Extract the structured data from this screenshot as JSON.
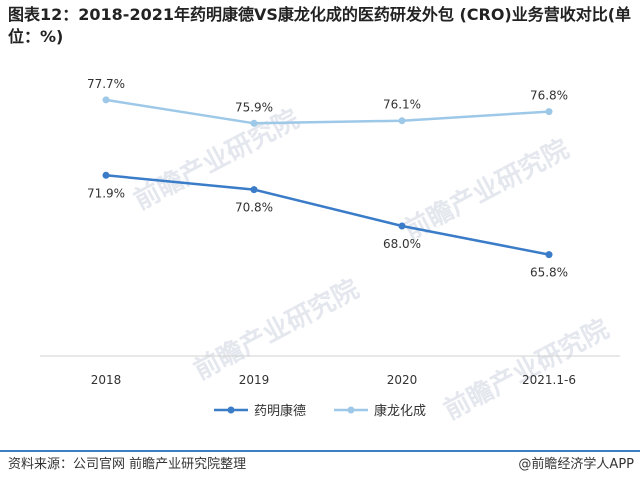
{
  "title": "图表12：2018-2021年药明康德VS康龙化成的医药研发外包 (CRO)业务营收对比(单位：%)",
  "footer": {
    "source": "资料来源：公司官网 前瞻产业研究院整理",
    "brand": "@前瞻经济学人APP"
  },
  "watermark": "前瞻产业研究院",
  "colors": {
    "wuxi": "#3a7cc8",
    "kanglong": "#9dc8e8",
    "footer_rule": "#3d7fc4"
  },
  "chart_data": {
    "type": "line",
    "categories": [
      "2018",
      "2019",
      "2020",
      "2021.1-6"
    ],
    "ylim": [
      60,
      80
    ],
    "grid": false,
    "legend_position": "bottom",
    "series": [
      {
        "name": "药明康德",
        "values": [
          71.9,
          70.8,
          68.0,
          65.8
        ],
        "labels": [
          "71.9%",
          "70.8%",
          "68.0%",
          "65.8%"
        ],
        "color": "#3a7cc8"
      },
      {
        "name": "康龙化成",
        "values": [
          77.7,
          75.9,
          76.1,
          76.8
        ],
        "labels": [
          "77.7%",
          "75.9%",
          "76.1%",
          "76.8%"
        ],
        "color": "#9dc8e8"
      }
    ]
  }
}
